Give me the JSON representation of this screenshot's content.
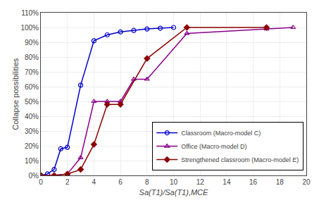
{
  "chart_data": {
    "type": "line",
    "x_label": "Sa(T1)/Sa(T1),MCE",
    "y_label": "Collapse possibilities",
    "series": [
      {
        "name": "Classroom (Macro-model C)",
        "color": "#0000CD",
        "marker": "circle-open",
        "x": [
          0,
          0.5,
          1,
          1.5,
          2,
          3,
          4,
          5,
          6,
          7,
          8,
          9,
          10
        ],
        "values": [
          0,
          0.01,
          0.04,
          0.18,
          0.19,
          0.61,
          0.91,
          0.95,
          0.97,
          0.98,
          0.99,
          0.995,
          1.0
        ]
      },
      {
        "name": "Office (Macro-model D)",
        "color": "#8B008B",
        "marker": "triangle-up-open",
        "x": [
          0,
          1,
          2,
          3,
          4,
          5,
          6,
          7,
          8,
          11,
          17,
          19
        ],
        "values": [
          0,
          0.0,
          0.01,
          0.12,
          0.5,
          0.5,
          0.5,
          0.65,
          0.65,
          0.96,
          0.99,
          1.0
        ]
      },
      {
        "name": "Strengthened classroom (Macro-model E)",
        "color": "#8B0000",
        "marker": "diamond",
        "x": [
          0,
          1,
          2,
          3,
          4,
          5,
          6,
          8,
          11,
          17
        ],
        "values": [
          0,
          0.0,
          0.01,
          0.04,
          0.21,
          0.48,
          0.48,
          0.79,
          1.0,
          1.0
        ]
      }
    ],
    "xlim": [
      0,
      20
    ],
    "xticks": [
      0,
      2,
      4,
      6,
      8,
      10,
      12,
      14,
      16,
      18,
      20
    ],
    "ylim": [
      0,
      1.1
    ],
    "yticks": [
      {
        "value": 0,
        "label": "0%"
      },
      {
        "value": 0.1,
        "label": "10%"
      },
      {
        "value": 0.2,
        "label": "20%"
      },
      {
        "value": 0.3,
        "label": "30%"
      },
      {
        "value": 0.4,
        "label": "40%"
      },
      {
        "value": 0.5,
        "label": "50%"
      },
      {
        "value": 0.6,
        "label": "60%"
      },
      {
        "value": 0.7,
        "label": "70%"
      },
      {
        "value": 0.8,
        "label": "80%"
      },
      {
        "value": 0.9,
        "label": "90%"
      },
      {
        "value": 1.0,
        "label": "100%"
      },
      {
        "value": 1.1,
        "label": "110%"
      }
    ],
    "grid": true,
    "legend": "lower right"
  }
}
